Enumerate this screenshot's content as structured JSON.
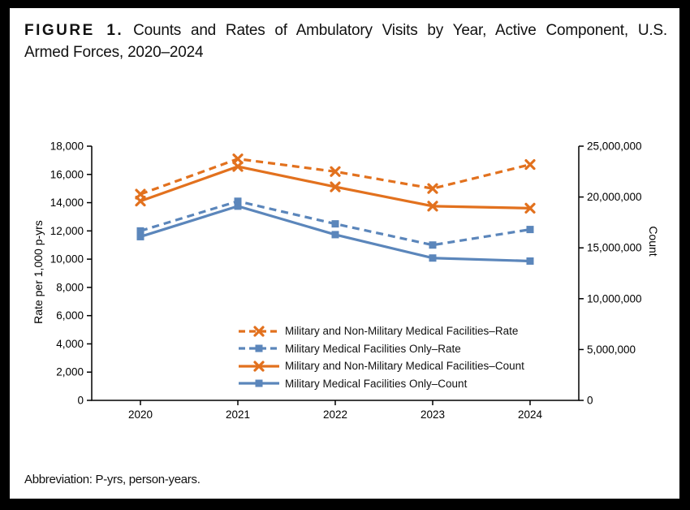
{
  "header": {
    "figure_label": "FIGURE 1.",
    "title_line1": "Counts and Rates of Ambulatory Visits by Year, Active Component, U.S.",
    "title_line2": "Armed Forces, 2020–2024"
  },
  "footer": {
    "note": "Abbreviation: P-yrs, person-years."
  },
  "colors": {
    "orange": "#E2711E",
    "blue": "#5B86BB",
    "axis": "#000000"
  },
  "chart_data": {
    "type": "line",
    "title": "FIGURE 1. Counts and Rates of Ambulatory Visits by Year, Active Component, U.S. Armed Forces, 2020–2024",
    "categories": [
      "2020",
      "2021",
      "2022",
      "2023",
      "2024"
    ],
    "left_axis": {
      "label": "Rate per 1,000 p-yrs",
      "min": 0,
      "max": 18000,
      "step": 2000
    },
    "right_axis": {
      "label": "Count",
      "min": 0,
      "max": 25000000,
      "step": 5000000
    },
    "grid": false,
    "legend_position": "inside-bottom-center",
    "series": [
      {
        "name": "Military and Non-Military Medical Facilities–Rate",
        "axis": "left",
        "style": "dashed",
        "marker": "x",
        "color": "#E2711E",
        "values": [
          14600,
          17100,
          16200,
          15000,
          16700
        ]
      },
      {
        "name": "Military Medical Facilities Only–Rate",
        "axis": "left",
        "style": "dashed",
        "marker": "square",
        "color": "#5B86BB",
        "values": [
          12000,
          14100,
          12500,
          11000,
          12100
        ]
      },
      {
        "name": "Military and Non-Military Medical Facilities–Count",
        "axis": "right",
        "style": "solid",
        "marker": "x",
        "color": "#E2711E",
        "values": [
          19600000,
          23000000,
          21000000,
          19100000,
          18900000
        ]
      },
      {
        "name": "Military Medical Facilities Only–Count",
        "axis": "right",
        "style": "solid",
        "marker": "square",
        "color": "#5B86BB",
        "values": [
          16100000,
          19100000,
          16300000,
          14000000,
          13700000
        ]
      }
    ]
  }
}
